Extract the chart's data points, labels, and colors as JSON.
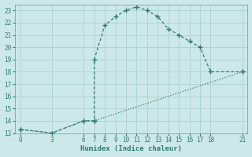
{
  "xlabel": "Humidex (Indice chaleur)",
  "line1_x": [
    0,
    3,
    6,
    7,
    7,
    8,
    9,
    10,
    11,
    12,
    13,
    14,
    15,
    16,
    17,
    18,
    21
  ],
  "line1_y": [
    13.3,
    13.0,
    14.0,
    14.0,
    19.0,
    21.8,
    22.5,
    23.0,
    23.3,
    23.0,
    22.5,
    21.5,
    21.0,
    20.5,
    20.0,
    18.0,
    18.0
  ],
  "line2_x": [
    0,
    3,
    6,
    7,
    21
  ],
  "line2_y": [
    13.3,
    13.0,
    14.0,
    14.0,
    18.0
  ],
  "line_color": "#2e7d6e",
  "bg_color": "#cce8e8",
  "grid_color": "#b0d4d4",
  "xlim": [
    -0.5,
    21.5
  ],
  "ylim": [
    13,
    23.5
  ],
  "xticks": [
    0,
    3,
    6,
    7,
    8,
    9,
    10,
    11,
    12,
    13,
    14,
    15,
    16,
    17,
    18,
    21
  ],
  "yticks": [
    13,
    14,
    15,
    16,
    17,
    18,
    19,
    20,
    21,
    22,
    23
  ]
}
